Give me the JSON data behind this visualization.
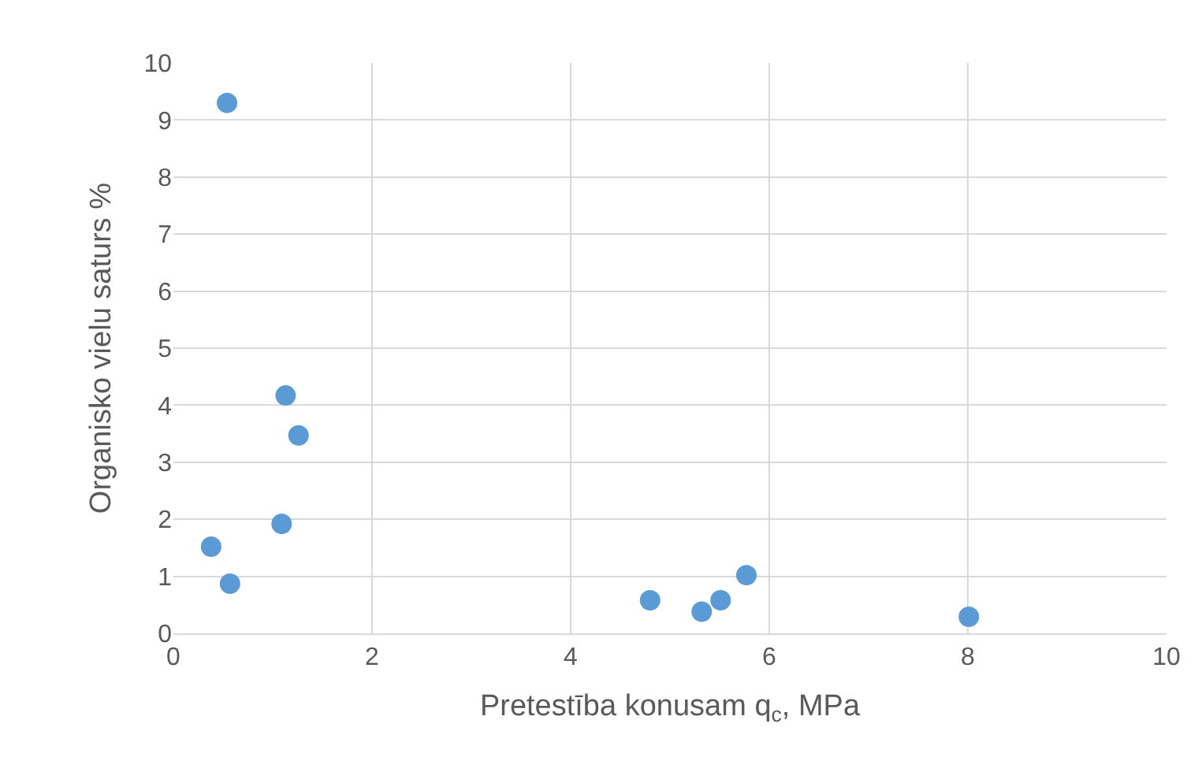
{
  "chart_data": {
    "type": "scatter",
    "xlabel": "Pretestība konusam q$_{c}$, MPa",
    "ylabel": "Organisko vielu saturs %",
    "x": [
      0.54,
      1.13,
      1.26,
      0.38,
      1.09,
      0.57,
      4.8,
      5.32,
      5.51,
      5.77,
      8.01
    ],
    "series": [
      {
        "color": "#5b9bd5",
        "values": [
          9.3,
          4.17,
          3.47,
          1.52,
          1.92,
          0.87,
          0.58,
          0.38,
          0.58,
          1.02,
          0.29
        ]
      }
    ],
    "xlim": [
      0,
      10
    ],
    "xticks": [
      0,
      2,
      4,
      6,
      8,
      10
    ],
    "ylim": [
      0,
      10
    ],
    "yticks": [
      0,
      1,
      2,
      3,
      4,
      5,
      6,
      7,
      8,
      9,
      10
    ],
    "grid": true,
    "marker": "circle",
    "legend": false
  }
}
